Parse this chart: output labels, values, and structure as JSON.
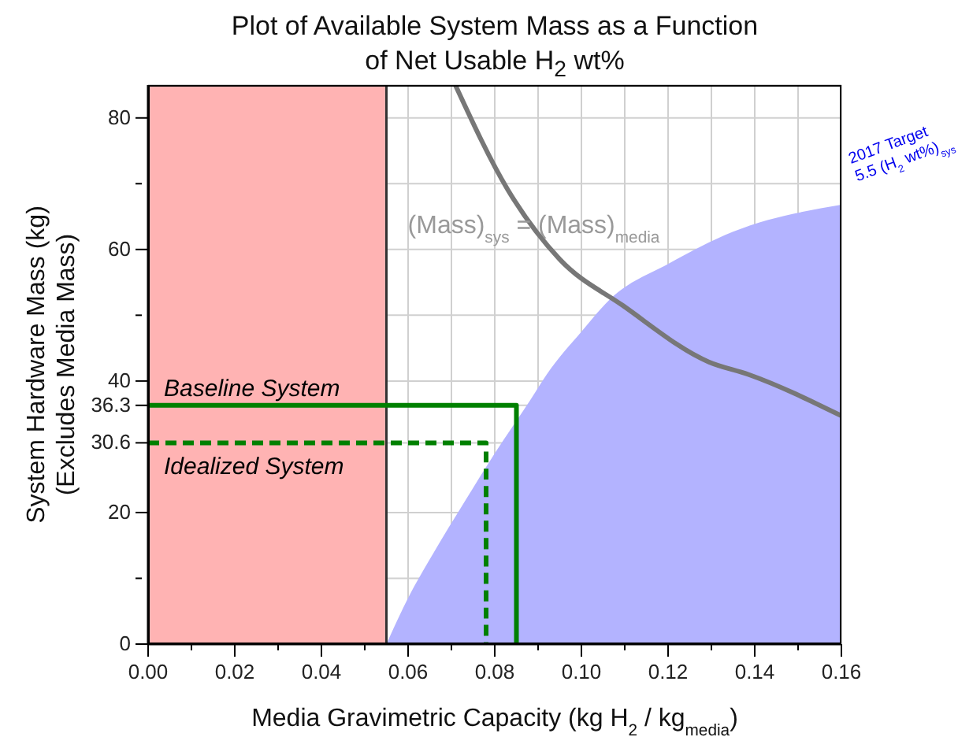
{
  "chart_data": {
    "type": "line",
    "title": "Plot of Available System Mass as a Function of Net Usable H$_{2}$ wt%",
    "xlabel": "Media Gravimetric Capacity (kg H$_{2}$ / kg$_{media}$)",
    "ylabel": "System Hardware Mass (kg)\n(Excludes Media Mass)",
    "xlim": [
      0,
      0.16
    ],
    "ylim": [
      0,
      85
    ],
    "xticks": [
      {
        "value": 0,
        "label": "0.00"
      },
      {
        "value": 0.01,
        "label": null
      },
      {
        "value": 0.02,
        "label": "0.02"
      },
      {
        "value": 0.03,
        "label": null
      },
      {
        "value": 0.04,
        "label": "0.04"
      },
      {
        "value": 0.05,
        "label": null
      },
      {
        "value": 0.06,
        "label": "0.06"
      },
      {
        "value": 0.07,
        "label": null
      },
      {
        "value": 0.08,
        "label": "0.08"
      },
      {
        "value": 0.09,
        "label": null
      },
      {
        "value": 0.1,
        "label": "0.10"
      },
      {
        "value": 0.11,
        "label": null
      },
      {
        "value": 0.12,
        "label": "0.12"
      },
      {
        "value": 0.13,
        "label": null
      },
      {
        "value": 0.14,
        "label": "0.14"
      },
      {
        "value": 0.15,
        "label": null
      },
      {
        "value": 0.16,
        "label": "0.16"
      }
    ],
    "yticks": [
      0,
      {
        "value": 10,
        "label": null
      },
      20,
      30.6,
      36.3,
      40,
      {
        "value": 50,
        "label": null
      },
      60,
      {
        "value": 70,
        "label": null
      },
      80
    ],
    "grid": true,
    "marker": "none",
    "series": [
      {
        "type": "area",
        "color": "#b3b3ff",
        "x": [
          0.055,
          0.06,
          0.066,
          0.073,
          0.08,
          0.0885,
          0.092,
          0.1,
          0.1067,
          0.12,
          0.135,
          0.16
        ],
        "values": [
          0,
          7,
          14,
          21.6,
          29,
          37.4,
          41,
          47.5,
          52.5,
          57.8,
          62.7,
          66.8
        ]
      },
      {
        "color": "#777777",
        "x": [
          0.0709,
          0.0829,
          0.095,
          0.1095,
          0.1294,
          0.1385,
          0.16
        ],
        "values": [
          85,
          69.2,
          58.5,
          51.5,
          42.9,
          41,
          34.7
        ]
      },
      {
        "color": "#008000",
        "line_style": "solid",
        "x": [
          0,
          0.085,
          0.085
        ],
        "values": [
          36.3,
          36.3,
          0
        ]
      },
      {
        "color": "#008000",
        "line_style": "dashed",
        "x": [
          0,
          0.078,
          0.078
        ],
        "values": [
          30.6,
          30.6,
          0
        ]
      }
    ],
    "bands": [
      {
        "axis": "x",
        "from": 0,
        "to": 0.055,
        "color": "#ffb3b3"
      }
    ],
    "ref_lines": [
      {
        "axis": "x",
        "value": 0.055,
        "color": "#333333"
      }
    ],
    "annotations": [
      {
        "text": "Baseline System",
        "x": 0,
        "y": 36.3
      },
      {
        "text": "Idealized System",
        "x": 0,
        "y": 30.6
      },
      {
        "text": "(Mass)$_{sys}$ = (Mass)$_{media}$",
        "x": 0.089,
        "y": 63
      },
      {
        "text": "2017 Target\n5.5 (H$_{2}$ wt%)$_{sys}$",
        "x": 0.16,
        "y": 66.8
      }
    ]
  }
}
